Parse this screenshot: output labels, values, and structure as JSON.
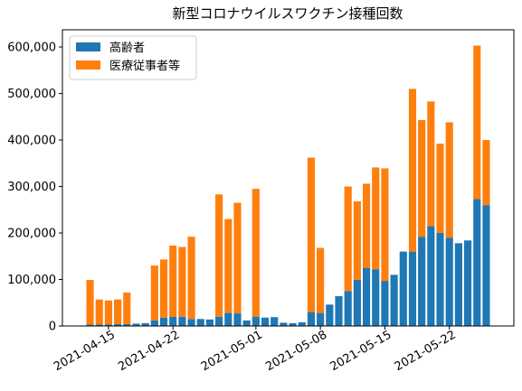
{
  "chart_data": {
    "type": "stacked_bar",
    "title": "新型コロナウイルスワクチン接種回数",
    "x": [
      "2021-04-13",
      "2021-04-14",
      "2021-04-15",
      "2021-04-16",
      "2021-04-17",
      "2021-04-18",
      "2021-04-19",
      "2021-04-20",
      "2021-04-21",
      "2021-04-22",
      "2021-04-23",
      "2021-04-24",
      "2021-04-25",
      "2021-04-26",
      "2021-04-27",
      "2021-04-28",
      "2021-04-29",
      "2021-04-30",
      "2021-05-01",
      "2021-05-02",
      "2021-05-03",
      "2021-05-04",
      "2021-05-05",
      "2021-05-06",
      "2021-05-07",
      "2021-05-08",
      "2021-05-09",
      "2021-05-10",
      "2021-05-11",
      "2021-05-12",
      "2021-05-13",
      "2021-05-14",
      "2021-05-15",
      "2021-05-16",
      "2021-05-17",
      "2021-05-18",
      "2021-05-19",
      "2021-05-20",
      "2021-05-21",
      "2021-05-22",
      "2021-05-23",
      "2021-05-24",
      "2021-05-25",
      "2021-05-26"
    ],
    "series": [
      {
        "name": "高齢者",
        "color": "#1f77b4",
        "values": [
          3000,
          3000,
          3000,
          4000,
          4000,
          5000,
          6000,
          12000,
          18000,
          20000,
          20000,
          15000,
          15000,
          14000,
          20000,
          28000,
          27000,
          12000,
          20000,
          18000,
          19000,
          7000,
          6000,
          8000,
          30000,
          28000,
          46000,
          64000,
          75000,
          99000,
          125000,
          122000,
          97000,
          110000,
          160000,
          160000,
          192000,
          215000,
          200000,
          190000,
          178000,
          184000,
          273000,
          260000
        ]
      },
      {
        "name": "医療従事者等",
        "color": "#ff7f0e",
        "values": [
          96000,
          54000,
          52000,
          53000,
          68000,
          0,
          0,
          118000,
          125000,
          153000,
          150000,
          177000,
          0,
          0,
          263000,
          202000,
          238000,
          0,
          275000,
          0,
          0,
          0,
          0,
          0,
          332000,
          140000,
          0,
          0,
          225000,
          169000,
          181000,
          219000,
          242000,
          0,
          0,
          350000,
          251000,
          268000,
          192000,
          248000,
          0,
          0,
          330000,
          140000
        ]
      }
    ],
    "xlim": [
      "2021-04-10",
      "2021-05-29"
    ],
    "xticks": [
      "2021-04-15",
      "2021-04-22",
      "2021-05-01",
      "2021-05-08",
      "2021-05-15",
      "2021-05-22"
    ],
    "ylim": [
      0,
      637000
    ],
    "yticks": [
      0,
      {
        "value": 100000,
        "label": "100,000"
      },
      {
        "value": 200000,
        "label": "200,000"
      },
      {
        "value": 300000,
        "label": "300,000"
      },
      {
        "value": 400000,
        "label": "400,000"
      },
      {
        "value": 500000,
        "label": "500,000"
      },
      {
        "value": 600000,
        "label": "600,000"
      }
    ],
    "legend": "upper left"
  }
}
